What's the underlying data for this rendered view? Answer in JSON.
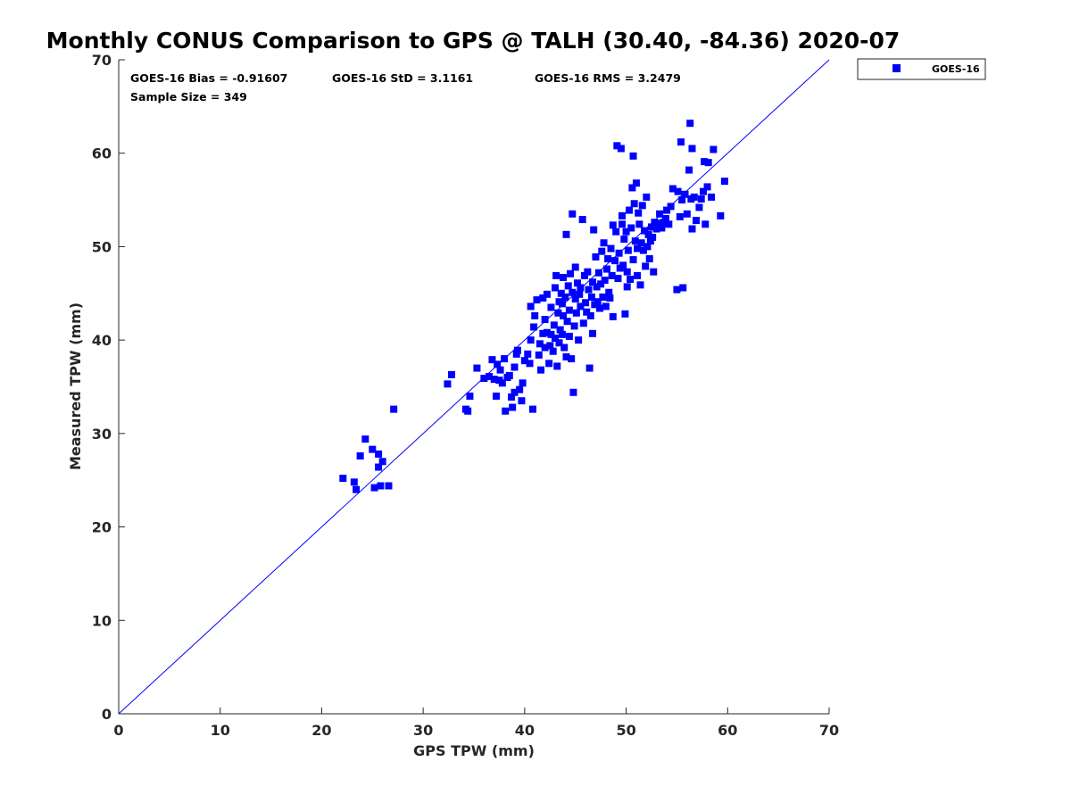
{
  "chart_data": {
    "type": "scatter",
    "title": "Monthly CONUS Comparison to GPS @ TALH (30.40, -84.36) 2020-07",
    "xlabel": "GPS TPW (mm)",
    "ylabel": "Measured TPW (mm)",
    "xlim": [
      0,
      70
    ],
    "ylim": [
      0,
      70
    ],
    "xticks": [
      0,
      10,
      20,
      30,
      40,
      50,
      60,
      70
    ],
    "yticks": [
      0,
      10,
      20,
      30,
      40,
      50,
      60,
      70
    ],
    "grid": false,
    "legend_position": "outside-top-right",
    "reference_line": {
      "name": "1:1 line",
      "x": [
        0,
        70
      ],
      "y": [
        0,
        70
      ],
      "color": "#0000ff"
    },
    "stats": [
      {
        "label": "GOES-16 Bias = -0.91607"
      },
      {
        "label": "GOES-16 StD = 3.1161"
      },
      {
        "label": "GOES-16 RMS = 3.2479"
      },
      {
        "label": "Sample Size = 349"
      }
    ],
    "series": [
      {
        "name": "GOES-16",
        "color": "#0000ff",
        "marker": "square",
        "points": [
          [
            22.1,
            25.2
          ],
          [
            23.2,
            24.8
          ],
          [
            23.4,
            24.0
          ],
          [
            23.8,
            27.6
          ],
          [
            24.3,
            29.4
          ],
          [
            25.0,
            28.3
          ],
          [
            25.2,
            24.2
          ],
          [
            25.6,
            26.4
          ],
          [
            25.6,
            27.8
          ],
          [
            25.8,
            24.4
          ],
          [
            26.0,
            27.0
          ],
          [
            26.6,
            24.4
          ],
          [
            27.1,
            32.6
          ],
          [
            32.4,
            35.3
          ],
          [
            32.8,
            36.3
          ],
          [
            34.2,
            32.6
          ],
          [
            34.4,
            32.4
          ],
          [
            34.6,
            34.0
          ],
          [
            35.3,
            37.0
          ],
          [
            36.0,
            35.9
          ],
          [
            36.5,
            36.1
          ],
          [
            36.8,
            37.9
          ],
          [
            37.0,
            35.8
          ],
          [
            37.2,
            34.0
          ],
          [
            37.3,
            37.4
          ],
          [
            37.5,
            35.7
          ],
          [
            37.6,
            36.8
          ],
          [
            37.8,
            35.4
          ],
          [
            38.0,
            38.0
          ],
          [
            38.1,
            32.4
          ],
          [
            38.3,
            36.0
          ],
          [
            38.5,
            36.2
          ],
          [
            38.7,
            33.9
          ],
          [
            38.8,
            32.8
          ],
          [
            39.0,
            37.1
          ],
          [
            39.0,
            34.4
          ],
          [
            39.2,
            38.5
          ],
          [
            39.3,
            38.9
          ],
          [
            39.5,
            34.7
          ],
          [
            39.7,
            33.5
          ],
          [
            39.8,
            35.4
          ],
          [
            40.0,
            37.8
          ],
          [
            40.3,
            38.5
          ],
          [
            40.5,
            37.5
          ],
          [
            40.6,
            40.0
          ],
          [
            40.6,
            43.6
          ],
          [
            40.8,
            32.6
          ],
          [
            40.9,
            41.4
          ],
          [
            41.0,
            42.6
          ],
          [
            41.2,
            44.3
          ],
          [
            41.4,
            38.4
          ],
          [
            41.5,
            39.6
          ],
          [
            41.6,
            36.8
          ],
          [
            41.8,
            44.5
          ],
          [
            41.8,
            40.7
          ],
          [
            42.0,
            39.2
          ],
          [
            42.0,
            42.2
          ],
          [
            42.2,
            40.8
          ],
          [
            42.2,
            44.9
          ],
          [
            42.4,
            37.5
          ],
          [
            42.5,
            39.4
          ],
          [
            42.6,
            40.6
          ],
          [
            42.6,
            43.5
          ],
          [
            42.8,
            38.8
          ],
          [
            42.9,
            41.6
          ],
          [
            43.0,
            45.6
          ],
          [
            43.0,
            40.2
          ],
          [
            43.1,
            46.9
          ],
          [
            43.2,
            37.2
          ],
          [
            43.3,
            42.9
          ],
          [
            43.4,
            44.1
          ],
          [
            43.4,
            39.7
          ],
          [
            43.5,
            41.1
          ],
          [
            43.6,
            45.0
          ],
          [
            43.7,
            43.9
          ],
          [
            43.7,
            40.6
          ],
          [
            43.8,
            42.6
          ],
          [
            43.8,
            46.7
          ],
          [
            43.9,
            39.2
          ],
          [
            44.0,
            44.6
          ],
          [
            44.1,
            38.2
          ],
          [
            44.1,
            51.3
          ],
          [
            44.2,
            42.0
          ],
          [
            44.3,
            45.8
          ],
          [
            44.4,
            40.4
          ],
          [
            44.4,
            43.2
          ],
          [
            44.5,
            47.1
          ],
          [
            44.6,
            38.0
          ],
          [
            44.7,
            45.1
          ],
          [
            44.7,
            53.5
          ],
          [
            44.8,
            34.4
          ],
          [
            44.9,
            41.5
          ],
          [
            45.0,
            44.4
          ],
          [
            45.0,
            47.8
          ],
          [
            45.1,
            42.9
          ],
          [
            45.2,
            46.1
          ],
          [
            45.3,
            40.0
          ],
          [
            45.4,
            44.9
          ],
          [
            45.5,
            43.6
          ],
          [
            45.5,
            45.6
          ],
          [
            45.7,
            52.9
          ],
          [
            45.8,
            41.8
          ],
          [
            45.9,
            46.9
          ],
          [
            46.0,
            44.0
          ],
          [
            46.1,
            43.0
          ],
          [
            46.2,
            47.3
          ],
          [
            46.3,
            45.4
          ],
          [
            46.4,
            37.0
          ],
          [
            46.5,
            42.6
          ],
          [
            46.6,
            44.6
          ],
          [
            46.7,
            40.7
          ],
          [
            46.7,
            46.2
          ],
          [
            46.8,
            51.8
          ],
          [
            46.9,
            43.8
          ],
          [
            47.0,
            48.9
          ],
          [
            47.1,
            45.7
          ],
          [
            47.2,
            44.1
          ],
          [
            47.3,
            47.2
          ],
          [
            47.4,
            43.4
          ],
          [
            47.5,
            46.0
          ],
          [
            47.6,
            49.5
          ],
          [
            47.7,
            44.6
          ],
          [
            47.8,
            50.4
          ],
          [
            47.9,
            46.4
          ],
          [
            48.0,
            43.6
          ],
          [
            48.1,
            47.6
          ],
          [
            48.2,
            48.7
          ],
          [
            48.3,
            45.1
          ],
          [
            48.4,
            44.5
          ],
          [
            48.5,
            49.8
          ],
          [
            48.6,
            46.9
          ],
          [
            48.7,
            52.3
          ],
          [
            48.7,
            42.5
          ],
          [
            48.9,
            48.5
          ],
          [
            49.0,
            51.6
          ],
          [
            49.1,
            60.8
          ],
          [
            49.2,
            46.6
          ],
          [
            49.3,
            49.3
          ],
          [
            49.4,
            47.7
          ],
          [
            49.5,
            60.5
          ],
          [
            49.6,
            52.4
          ],
          [
            49.6,
            53.3
          ],
          [
            49.7,
            48.0
          ],
          [
            49.8,
            50.8
          ],
          [
            49.9,
            42.8
          ],
          [
            50.0,
            51.6
          ],
          [
            50.1,
            47.3
          ],
          [
            50.1,
            45.7
          ],
          [
            50.2,
            49.6
          ],
          [
            50.3,
            53.9
          ],
          [
            50.4,
            46.5
          ],
          [
            50.5,
            52.0
          ],
          [
            50.6,
            56.3
          ],
          [
            50.7,
            48.6
          ],
          [
            50.7,
            59.7
          ],
          [
            50.8,
            54.6
          ],
          [
            50.9,
            50.6
          ],
          [
            51.0,
            56.8
          ],
          [
            51.1,
            49.8
          ],
          [
            51.1,
            46.9
          ],
          [
            51.2,
            53.6
          ],
          [
            51.3,
            52.4
          ],
          [
            51.4,
            45.9
          ],
          [
            51.5,
            50.4
          ],
          [
            51.6,
            54.4
          ],
          [
            51.7,
            49.6
          ],
          [
            51.8,
            51.7
          ],
          [
            51.9,
            47.9
          ],
          [
            52.0,
            55.3
          ],
          [
            52.1,
            50.0
          ],
          [
            52.2,
            51.3
          ],
          [
            52.3,
            48.7
          ],
          [
            52.4,
            50.6
          ],
          [
            52.5,
            52.1
          ],
          [
            52.6,
            51.0
          ],
          [
            52.7,
            47.3
          ],
          [
            52.8,
            52.6
          ],
          [
            53.0,
            51.9
          ],
          [
            53.2,
            52.5
          ],
          [
            53.3,
            53.5
          ],
          [
            53.5,
            52.0
          ],
          [
            53.7,
            52.6
          ],
          [
            53.9,
            53.0
          ],
          [
            54.0,
            53.9
          ],
          [
            54.2,
            52.4
          ],
          [
            54.4,
            54.3
          ],
          [
            54.6,
            56.2
          ],
          [
            55.0,
            45.4
          ],
          [
            55.1,
            55.9
          ],
          [
            55.3,
            53.2
          ],
          [
            55.4,
            61.2
          ],
          [
            55.5,
            55.0
          ],
          [
            55.6,
            45.6
          ],
          [
            55.8,
            55.6
          ],
          [
            56.0,
            53.5
          ],
          [
            56.2,
            58.2
          ],
          [
            56.3,
            63.2
          ],
          [
            56.4,
            55.1
          ],
          [
            56.5,
            60.5
          ],
          [
            56.5,
            51.9
          ],
          [
            56.7,
            55.3
          ],
          [
            56.9,
            52.8
          ],
          [
            57.2,
            54.2
          ],
          [
            57.4,
            55.1
          ],
          [
            57.6,
            55.9
          ],
          [
            57.7,
            59.1
          ],
          [
            57.8,
            52.4
          ],
          [
            58.0,
            56.4
          ],
          [
            58.1,
            59.0
          ],
          [
            58.4,
            55.3
          ],
          [
            58.6,
            60.4
          ],
          [
            59.3,
            53.3
          ],
          [
            59.7,
            57.0
          ]
        ]
      }
    ]
  }
}
